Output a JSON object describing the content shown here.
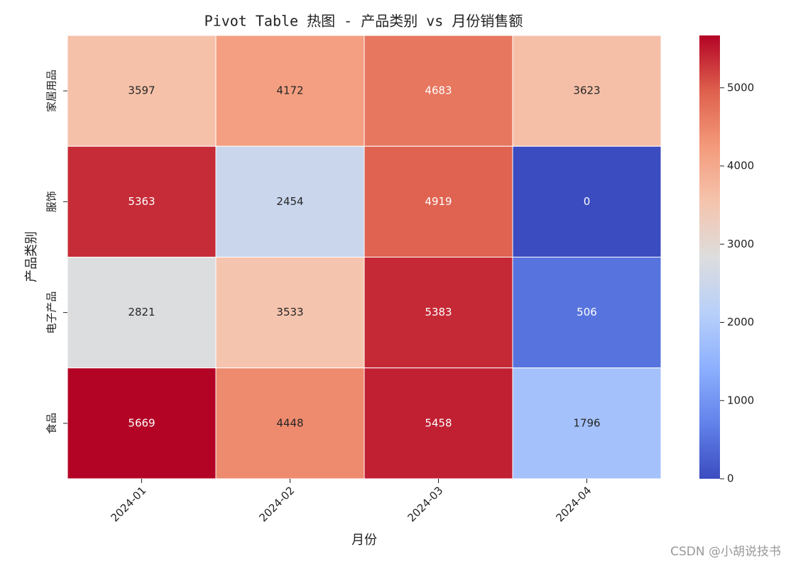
{
  "chart_data": {
    "type": "heatmap",
    "title": "Pivot Table 热图 - 产品类别 vs 月份销售额",
    "x_label": "月份",
    "y_label": "产品类别",
    "x_categories": [
      "2024-01",
      "2024-02",
      "2024-03",
      "2024-04"
    ],
    "y_categories": [
      "家居用品",
      "服饰",
      "电子产品",
      "食品"
    ],
    "values": [
      [
        3597,
        4172,
        4683,
        3623
      ],
      [
        5363,
        2454,
        4919,
        0
      ],
      [
        2821,
        3533,
        5383,
        506
      ],
      [
        5669,
        4448,
        5458,
        1796
      ]
    ],
    "colormap": "coolwarm",
    "clim": [
      0,
      5669
    ],
    "colorbar_ticks": [
      0,
      1000,
      2000,
      3000,
      4000,
      5000
    ],
    "watermark": "CSDN @小胡说技书"
  }
}
